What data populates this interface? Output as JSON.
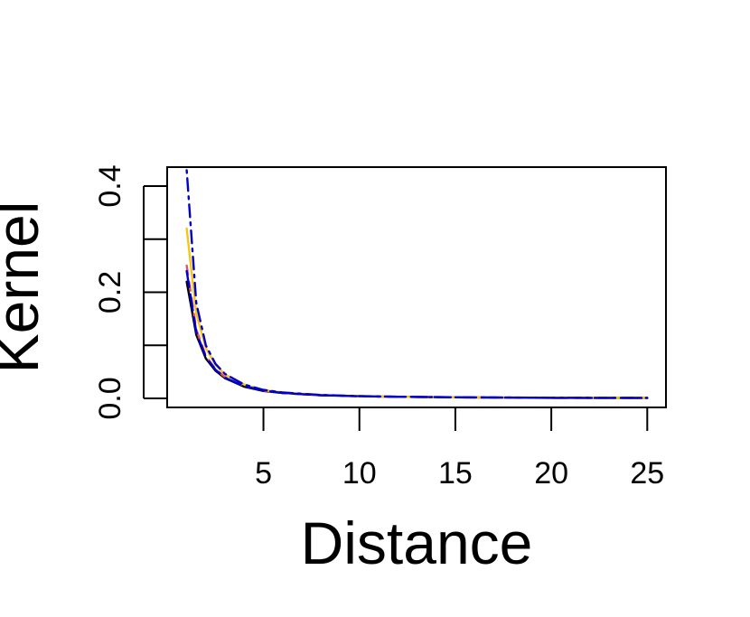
{
  "chart_data": {
    "type": "line",
    "title": "",
    "xlabel": "Distance",
    "ylabel": "Kernel",
    "xlim": [
      0,
      25
    ],
    "ylim": [
      0,
      0.4
    ],
    "x_ticks": [
      5,
      10,
      15,
      20,
      25
    ],
    "x_tick_labels": [
      "5",
      "10",
      "15",
      "20",
      "25"
    ],
    "y_ticks": [
      0,
      0.1,
      0.2,
      0.3,
      0.4
    ],
    "y_tick_labels": [
      "0.0",
      "",
      "0.2",
      "",
      "0.4"
    ],
    "grid": false,
    "legend": "none",
    "series": [
      {
        "color": "#000000",
        "style": "solid",
        "x": [
          1,
          1.5,
          2,
          2.5,
          3,
          4,
          5,
          6,
          8,
          10,
          12,
          15,
          20,
          25
        ],
        "y": [
          0.22,
          0.12,
          0.075,
          0.052,
          0.038,
          0.022,
          0.014,
          0.01,
          0.006,
          0.004,
          0.003,
          0.002,
          0.001,
          0.0008
        ]
      },
      {
        "color": "#DF536B",
        "style": "dashed",
        "x": [
          1,
          1.5,
          2,
          2.5,
          3,
          4,
          5,
          6,
          8,
          10,
          12,
          15,
          20,
          25
        ],
        "y": [
          0.25,
          0.13,
          0.08,
          0.055,
          0.04,
          0.023,
          0.015,
          0.01,
          0.006,
          0.004,
          0.003,
          0.002,
          0.001,
          0.0008
        ]
      },
      {
        "color": "#F5C710",
        "style": "solid",
        "x": [
          1,
          1.5,
          2,
          2.5,
          3,
          4,
          5,
          6,
          8,
          10,
          12,
          15,
          20,
          25
        ],
        "y": [
          0.32,
          0.16,
          0.095,
          0.063,
          0.045,
          0.026,
          0.016,
          0.011,
          0.0065,
          0.0042,
          0.003,
          0.002,
          0.0012,
          0.0008
        ]
      },
      {
        "color": "#0000CC",
        "style": "dashdot",
        "x": [
          1,
          1.5,
          2,
          2.5,
          3,
          4,
          5,
          6,
          8,
          10,
          12,
          15,
          20,
          25
        ],
        "y": [
          0.43,
          0.18,
          0.1,
          0.065,
          0.046,
          0.026,
          0.016,
          0.011,
          0.0065,
          0.0042,
          0.003,
          0.002,
          0.0012,
          0.0008
        ]
      },
      {
        "color": "#0000CC",
        "style": "longdash",
        "x": [
          1,
          1.5,
          2,
          2.5,
          3,
          4,
          5,
          6,
          8,
          10,
          12,
          15,
          20,
          25
        ],
        "y": [
          0.24,
          0.125,
          0.078,
          0.054,
          0.039,
          0.023,
          0.015,
          0.01,
          0.006,
          0.004,
          0.003,
          0.002,
          0.001,
          0.0008
        ]
      }
    ]
  }
}
